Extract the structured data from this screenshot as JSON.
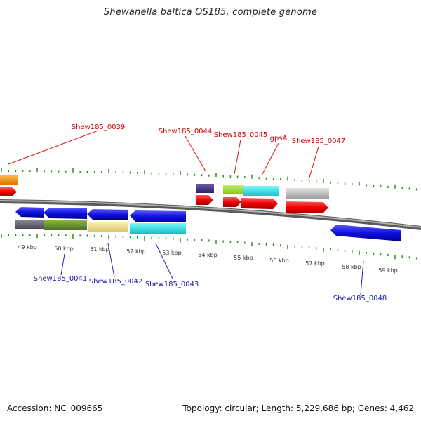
{
  "title": "Shewanella baltica OS185, complete genome",
  "footer": {
    "accession": "Accession: NC_009665",
    "stats": "Topology: circular; Length: 5,229,686 bp; Genes: 4,462"
  },
  "colors": {
    "backbone": "#8a8a8a",
    "ticks": "#2e8b1e",
    "top_label": "#cc0000",
    "bottom_label": "#1a1aa8",
    "scale_label": "#333333"
  },
  "scale_labels": [
    "49 kbp",
    "50 kbp",
    "51 kbp",
    "52 kbp",
    "53 kbp",
    "54 kbp",
    "55 kbp",
    "56 kbp",
    "57 kbp",
    "58 kbp",
    "59 kbp"
  ],
  "top_gene_labels": [
    "Shew185_0039",
    "Shew185_0044",
    "Shew185_0045",
    "gpsA",
    "Shew185_0047"
  ],
  "bottom_gene_labels": [
    "Shew185_0041",
    "Shew185_0042",
    "Shew185_0043",
    "Shew185_0048"
  ]
}
